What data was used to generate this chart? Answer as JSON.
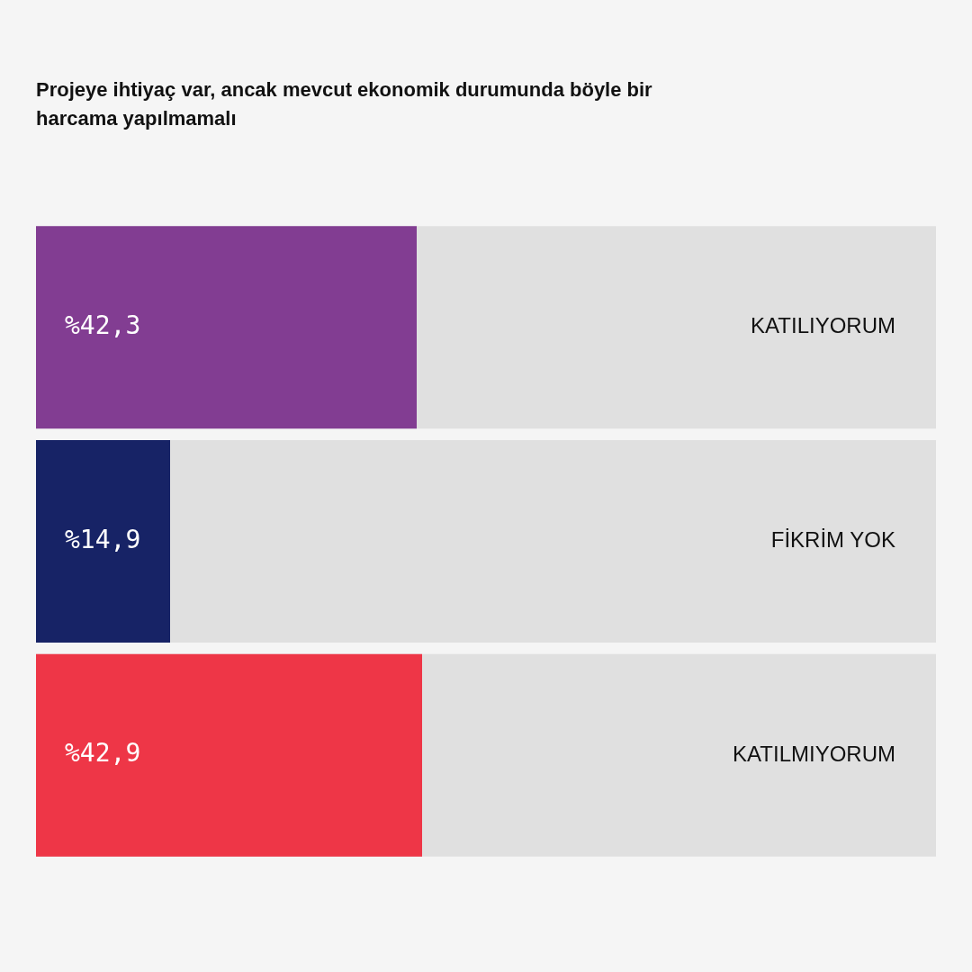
{
  "chart_data": {
    "type": "bar",
    "orientation": "horizontal",
    "title": "Projeye ihtiyaç var, ancak mevcut ekonomik durumunda böyle bir harcama yapılmamalı",
    "categories": [
      "KATILIYORUM",
      "FİKRİM YOK",
      "KATILMIYORUM"
    ],
    "values": [
      42.3,
      14.9,
      42.9
    ],
    "colors": [
      "#823d92",
      "#172366",
      "#ee3647"
    ],
    "value_labels": [
      "%42,3",
      "%14,9",
      "%42,9"
    ],
    "xlim": [
      0,
      100
    ]
  }
}
